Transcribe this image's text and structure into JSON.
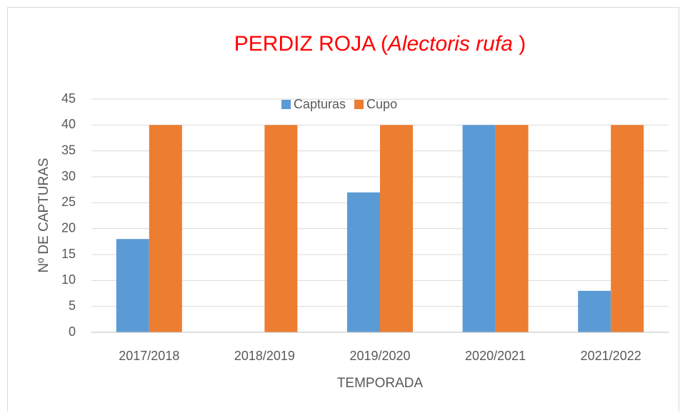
{
  "chart_data": {
    "type": "bar",
    "title": [
      "PERDIZ ROJA (",
      "Alectoris rufa",
      " )"
    ],
    "title_color": "#ff0000",
    "categories": [
      "2017/2018",
      "2018/2019",
      "2019/2020",
      "2020/2021",
      "2021/2022"
    ],
    "series": [
      {
        "name": "Capturas",
        "color": "#5b9bd5",
        "values": [
          18,
          0,
          27,
          40,
          8
        ]
      },
      {
        "name": "Cupo",
        "color": "#ed7d31",
        "values": [
          40,
          40,
          40,
          40,
          40
        ]
      }
    ],
    "ylabel": "Nº DE CAPTURAS",
    "xlabel": "TEMPORADA",
    "ylim": [
      0,
      45
    ],
    "yticks": [
      0,
      5,
      10,
      15,
      20,
      25,
      30,
      35,
      40,
      45
    ],
    "grid": true,
    "legend": "top"
  }
}
